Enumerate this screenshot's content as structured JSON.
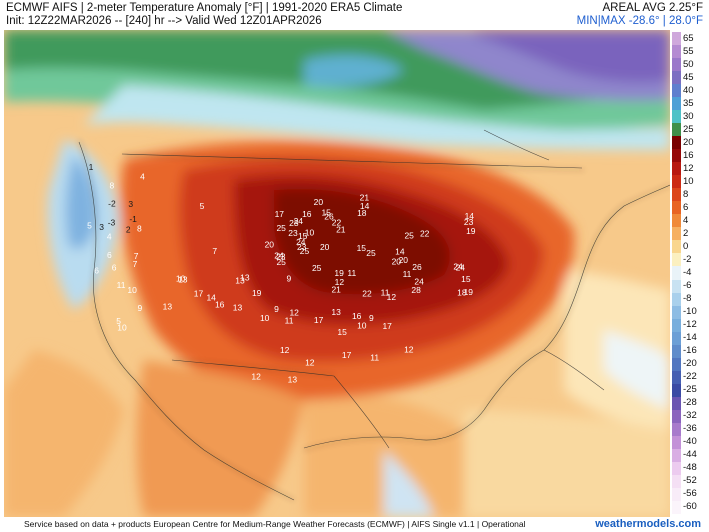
{
  "header": {
    "title": "ECMWF AIFS | 2-meter Temperature Anomaly [°F] | 1991-2020 ERA5 Climate",
    "init": "Init: 12Z22MAR2026 -- [240] hr --> Valid Wed 12Z01APR2026",
    "areal_avg": "AREAL AVG 2.25°F",
    "min_max": "MIN|MAX -28.6° | 28.0°F",
    "min_max_color": "#1f5fd0"
  },
  "colorbar": {
    "labels": [
      "65",
      "55",
      "50",
      "45",
      "40",
      "35",
      "30",
      "25",
      "20",
      "16",
      "12",
      "10",
      "8",
      "6",
      "4",
      "2",
      "0",
      "-2",
      "-4",
      "-6",
      "-8",
      "-10",
      "-12",
      "-14",
      "-16",
      "-20",
      "-22",
      "-25",
      "-28",
      "-32",
      "-36",
      "-40",
      "-44",
      "-48",
      "-52",
      "-56",
      "-60"
    ],
    "colors": [
      "#cfa8dc",
      "#b48bd2",
      "#9a78ca",
      "#7c6fc2",
      "#5f7fce",
      "#4fa0d6",
      "#4fc2c7",
      "#3f8f4a",
      "#7a0000",
      "#960808",
      "#b81810",
      "#cc2a14",
      "#dc461c",
      "#e86424",
      "#f08a3a",
      "#f6b062",
      "#f9d68e",
      "#fbf0c0",
      "#e9f3f8",
      "#c8e2f2",
      "#a9d0ec",
      "#8dbce4",
      "#78aedd",
      "#6c9fd6",
      "#5f8ccb",
      "#5176c0",
      "#455fb2",
      "#3a4aa4",
      "#6a55b2",
      "#8a64be",
      "#a77acc",
      "#c391d8",
      "#d9aee4",
      "#eccbef",
      "#f4dff4",
      "#f8ecf8",
      "#fbf4fb"
    ]
  },
  "map": {
    "numbers": [
      "20",
      "20",
      "24",
      "24",
      "23",
      "21",
      "21",
      "24",
      "22",
      "25",
      "25",
      "23",
      "26",
      "25",
      "25",
      "26",
      "28",
      "25",
      "23",
      "24",
      "25",
      "24",
      "22",
      "23",
      "24",
      "21",
      "20",
      "20",
      "19",
      "20",
      "22",
      "23",
      "16",
      "19",
      "16",
      "15",
      "12",
      "14",
      "11",
      "18",
      "19",
      "17",
      "17",
      "16",
      "17",
      "15",
      "13",
      "12",
      "14",
      "10",
      "11",
      "12",
      "13",
      "15",
      "17",
      "13",
      "11",
      "12",
      "10",
      "14",
      "13",
      "15",
      "10",
      "12",
      "9",
      "9",
      "8",
      "7",
      "6",
      "7",
      "6",
      "5",
      "4",
      "3",
      "-1",
      "-2",
      "-3",
      "3",
      "6",
      "5",
      "4",
      "2",
      "1",
      "5",
      "10",
      "11",
      "9",
      "10",
      "11",
      "8",
      "7",
      "12",
      "15",
      "14",
      "13",
      "19",
      "18",
      "17",
      "13",
      "13",
      "12",
      "10",
      "11",
      "9"
    ]
  },
  "footer": {
    "credit": "Service based on data + products European Centre for Medium-Range Weather Forecasts (ECMWF) | AIFS Single v1.1 | Operational",
    "brand": "weathermodels.com",
    "brand_color": "#1a5fc0"
  }
}
